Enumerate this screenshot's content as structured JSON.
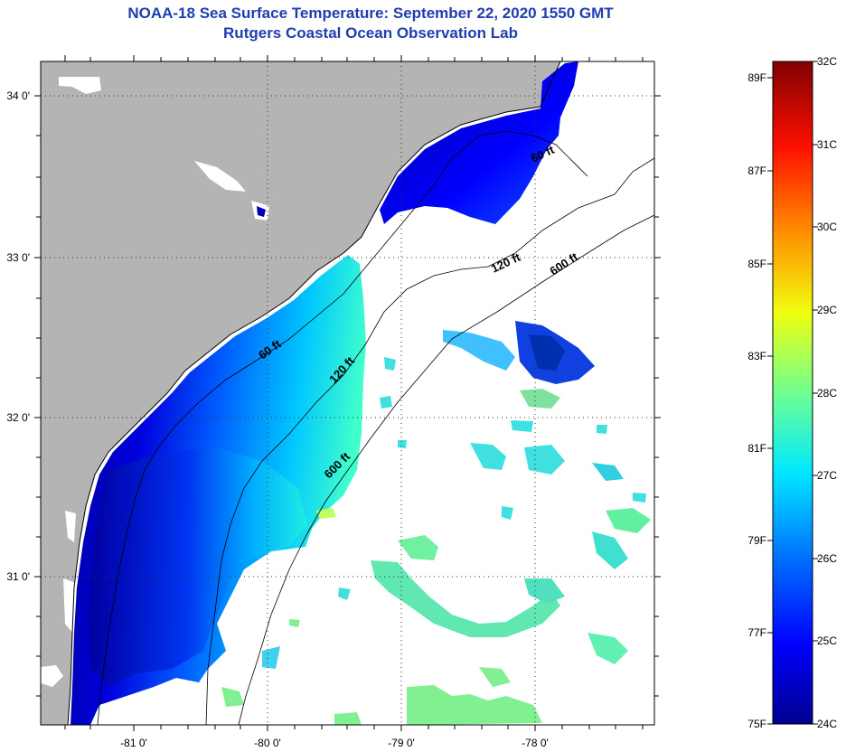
{
  "title": {
    "line1": "NOAA-18 Sea Surface Temperature:  September 22, 2020 1550 GMT",
    "line2": "Rutgers Coastal Ocean Observation Lab"
  },
  "map": {
    "lat_labels": [
      "34 0'",
      "33 0'",
      "32 0'",
      "31 0'"
    ],
    "lon_labels": [
      "-81 0'",
      "-80 0'",
      "-79 0'",
      "-78 0'"
    ],
    "depth_labels": [
      "60 ft",
      "60 ft",
      "120 ft",
      "120 ft",
      "600 ft",
      "600 ft"
    ],
    "colors": {
      "land": "#b4b4b4",
      "no_data": "#ffffff",
      "grid": "#333333"
    }
  },
  "colorbar": {
    "fahrenheit_labels": [
      "89F",
      "87F",
      "85F",
      "83F",
      "81F",
      "79F",
      "77F",
      "75F"
    ],
    "celsius_labels": [
      "32C",
      "31C",
      "30C",
      "29C",
      "28C",
      "27C",
      "26C",
      "25C",
      "24C"
    ],
    "colors": [
      "#00008f",
      "#0000ff",
      "#0080ff",
      "#00ffff",
      "#80ff80",
      "#ffff00",
      "#ff8000",
      "#ff0000",
      "#800000"
    ]
  }
}
